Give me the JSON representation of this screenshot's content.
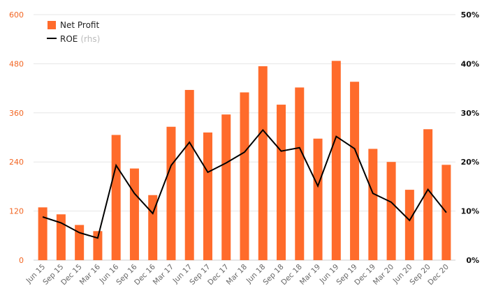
{
  "chart_data": {
    "type": "bar+line",
    "categories": [
      "Jun 15",
      "Sep 15",
      "Dec 15",
      "Mar 16",
      "Jun 16",
      "Sep 16",
      "Dec 16",
      "Mar 17",
      "Jun 17",
      "Sep 17",
      "Dec 17",
      "Mar 18",
      "Jun 18",
      "Sep 18",
      "Dec 18",
      "Mar 19",
      "Jun 19",
      "Sep 19",
      "Dec 19",
      "Mar 20",
      "Jun 20",
      "Sep 20",
      "Dec 20"
    ],
    "series": [
      {
        "name": "Net Profit",
        "type": "bar",
        "axis": "left",
        "color": "#ff6b2b",
        "values": [
          129,
          112,
          86,
          71,
          306,
          224,
          159,
          326,
          416,
          312,
          356,
          410,
          474,
          380,
          422,
          297,
          487,
          436,
          272,
          240,
          172,
          320,
          233
        ]
      },
      {
        "name": "ROE",
        "name_suffix": "(rhs)",
        "type": "line",
        "axis": "right",
        "color": "#000000",
        "values": [
          8.8,
          7.6,
          5.6,
          4.5,
          19.3,
          13.6,
          9.5,
          19.3,
          24.0,
          17.9,
          19.8,
          22.0,
          26.5,
          22.2,
          22.9,
          15.1,
          25.2,
          22.7,
          13.6,
          11.8,
          8.1,
          14.4,
          9.7
        ]
      }
    ],
    "y_left": {
      "ticks": [
        "0",
        "120",
        "240",
        "360",
        "480",
        "600"
      ],
      "ylim": [
        0,
        600
      ]
    },
    "y_right": {
      "ticks": [
        "0%",
        "10%",
        "20%",
        "30%",
        "40%",
        "50%"
      ],
      "ylim": [
        0,
        50
      ]
    },
    "grid": true,
    "legend_position": "top-left"
  }
}
